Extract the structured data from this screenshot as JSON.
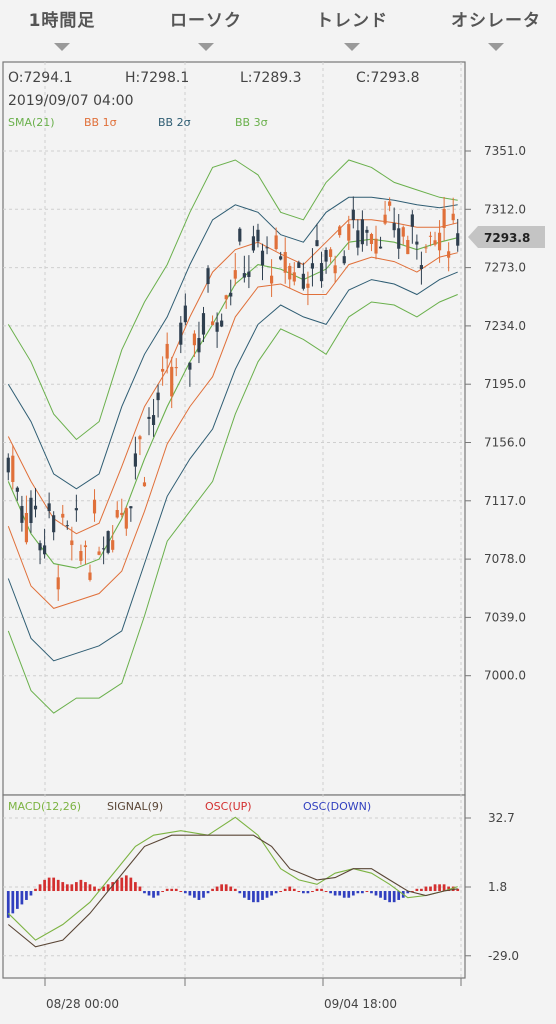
{
  "tabs": [
    {
      "label": "1時間足"
    },
    {
      "label": "ローソク"
    },
    {
      "label": "トレンド"
    },
    {
      "label": "オシレータ"
    }
  ],
  "ohlc": {
    "open": "O:7294.1",
    "high": "H:7298.1",
    "low": "L:7289.3",
    "close": "C:7293.8",
    "datetime": "2019/09/07 04:00"
  },
  "legend_main": [
    {
      "label": "SMA(21)",
      "color": "#6ab04c"
    },
    {
      "label": "BB 1σ",
      "color": "#e0703a"
    },
    {
      "label": "BB 2σ",
      "color": "#2f5d73"
    },
    {
      "label": "BB 3σ",
      "color": "#6ab04c"
    }
  ],
  "legend_sub": [
    {
      "label": "MACD(12,26)",
      "color": "#7cb342"
    },
    {
      "label": "SIGNAL(9)",
      "color": "#5a4636"
    },
    {
      "label": "OSC(UP)",
      "color": "#d32f2f"
    },
    {
      "label": "OSC(DOWN)",
      "color": "#303fbf"
    }
  ],
  "price_tag": "7293.8",
  "x_labels": [
    "08/28 00:00",
    "09/04 18:00"
  ],
  "colors": {
    "up": "#e0703a",
    "down": "#2f3f4f",
    "sma": "#6ab04c",
    "bb1": "#e0703a",
    "bb2": "#2f5d73",
    "bb3": "#6ab04c",
    "macd": "#7cb342",
    "signal": "#5a4636",
    "osc_up": "#d32f2f",
    "osc_down": "#303fbf"
  },
  "chart_data": [
    {
      "type": "candlestick",
      "yticks": [
        "7351.0",
        "7312.0",
        "7273.0",
        "7234.0",
        "7195.0",
        "7156.0",
        "7117.0",
        "7078.0",
        "7039.0",
        "7000.0"
      ],
      "ylim": [
        6962,
        7380
      ],
      "n_candles": 100,
      "sma21": [
        [
          0,
          7130
        ],
        [
          5,
          7095
        ],
        [
          10,
          7075
        ],
        [
          15,
          7072
        ],
        [
          20,
          7078
        ],
        [
          25,
          7105
        ],
        [
          30,
          7145
        ],
        [
          35,
          7180
        ],
        [
          40,
          7210
        ],
        [
          45,
          7235
        ],
        [
          50,
          7262
        ],
        [
          55,
          7275
        ],
        [
          60,
          7272
        ],
        [
          65,
          7265
        ],
        [
          70,
          7272
        ],
        [
          75,
          7290
        ],
        [
          80,
          7292
        ],
        [
          85,
          7290
        ],
        [
          90,
          7285
        ],
        [
          95,
          7290
        ],
        [
          99,
          7293
        ]
      ],
      "bb1": [
        [
          0,
          7160
        ],
        [
          5,
          7130
        ],
        [
          10,
          7105
        ],
        [
          15,
          7095
        ],
        [
          20,
          7102
        ],
        [
          25,
          7140
        ],
        [
          30,
          7180
        ],
        [
          35,
          7205
        ],
        [
          40,
          7240
        ],
        [
          45,
          7270
        ],
        [
          50,
          7285
        ],
        [
          55,
          7290
        ],
        [
          60,
          7282
        ],
        [
          65,
          7275
        ],
        [
          70,
          7290
        ],
        [
          75,
          7305
        ],
        [
          80,
          7305
        ],
        [
          85,
          7303
        ],
        [
          90,
          7300
        ],
        [
          95,
          7300
        ],
        [
          99,
          7303
        ]
      ],
      "bb1_low": [
        [
          0,
          7100
        ],
        [
          5,
          7060
        ],
        [
          10,
          7045
        ],
        [
          15,
          7050
        ],
        [
          20,
          7055
        ],
        [
          25,
          7070
        ],
        [
          30,
          7110
        ],
        [
          35,
          7155
        ],
        [
          40,
          7180
        ],
        [
          45,
          7200
        ],
        [
          50,
          7240
        ],
        [
          55,
          7260
        ],
        [
          60,
          7262
        ],
        [
          65,
          7255
        ],
        [
          70,
          7255
        ],
        [
          75,
          7275
        ],
        [
          80,
          7280
        ],
        [
          85,
          7277
        ],
        [
          90,
          7270
        ],
        [
          95,
          7280
        ],
        [
          99,
          7283
        ]
      ],
      "bb2": [
        [
          0,
          7195
        ],
        [
          5,
          7170
        ],
        [
          10,
          7135
        ],
        [
          15,
          7125
        ],
        [
          20,
          7135
        ],
        [
          25,
          7180
        ],
        [
          30,
          7215
        ],
        [
          35,
          7240
        ],
        [
          40,
          7275
        ],
        [
          45,
          7305
        ],
        [
          50,
          7315
        ],
        [
          55,
          7310
        ],
        [
          60,
          7295
        ],
        [
          65,
          7290
        ],
        [
          70,
          7310
        ],
        [
          75,
          7320
        ],
        [
          80,
          7320
        ],
        [
          85,
          7318
        ],
        [
          90,
          7315
        ],
        [
          95,
          7313
        ],
        [
          99,
          7315
        ]
      ],
      "bb2_low": [
        [
          0,
          7065
        ],
        [
          5,
          7025
        ],
        [
          10,
          7010
        ],
        [
          15,
          7015
        ],
        [
          20,
          7020
        ],
        [
          25,
          7030
        ],
        [
          30,
          7075
        ],
        [
          35,
          7120
        ],
        [
          40,
          7145
        ],
        [
          45,
          7165
        ],
        [
          50,
          7205
        ],
        [
          55,
          7235
        ],
        [
          60,
          7248
        ],
        [
          65,
          7240
        ],
        [
          70,
          7235
        ],
        [
          75,
          7258
        ],
        [
          80,
          7265
        ],
        [
          85,
          7262
        ],
        [
          90,
          7255
        ],
        [
          95,
          7265
        ],
        [
          99,
          7270
        ]
      ],
      "bb3": [
        [
          0,
          7235
        ],
        [
          5,
          7210
        ],
        [
          10,
          7175
        ],
        [
          15,
          7158
        ],
        [
          20,
          7170
        ],
        [
          25,
          7218
        ],
        [
          30,
          7250
        ],
        [
          35,
          7275
        ],
        [
          40,
          7310
        ],
        [
          45,
          7340
        ],
        [
          50,
          7345
        ],
        [
          55,
          7335
        ],
        [
          60,
          7310
        ],
        [
          65,
          7305
        ],
        [
          70,
          7330
        ],
        [
          75,
          7345
        ],
        [
          80,
          7340
        ],
        [
          85,
          7330
        ],
        [
          90,
          7325
        ],
        [
          95,
          7320
        ],
        [
          99,
          7318
        ]
      ],
      "bb3_low": [
        [
          0,
          7030
        ],
        [
          5,
          6990
        ],
        [
          10,
          6975
        ],
        [
          15,
          6985
        ],
        [
          20,
          6985
        ],
        [
          25,
          6995
        ],
        [
          30,
          7040
        ],
        [
          35,
          7090
        ],
        [
          40,
          7110
        ],
        [
          45,
          7130
        ],
        [
          50,
          7175
        ],
        [
          55,
          7210
        ],
        [
          60,
          7232
        ],
        [
          65,
          7225
        ],
        [
          70,
          7215
        ],
        [
          75,
          7240
        ],
        [
          80,
          7250
        ],
        [
          85,
          7248
        ],
        [
          90,
          7240
        ],
        [
          95,
          7250
        ],
        [
          99,
          7255
        ]
      ]
    },
    {
      "type": "macd",
      "yticks": [
        "32.7",
        "1.8",
        "-29.0"
      ],
      "ylim": [
        -36,
        40
      ],
      "macd": [
        [
          0,
          -10
        ],
        [
          6,
          -22
        ],
        [
          12,
          -15
        ],
        [
          18,
          -5
        ],
        [
          22,
          5
        ],
        [
          28,
          20
        ],
        [
          32,
          25
        ],
        [
          38,
          27
        ],
        [
          44,
          25
        ],
        [
          50,
          33
        ],
        [
          55,
          25
        ],
        [
          60,
          10
        ],
        [
          64,
          5
        ],
        [
          68,
          3
        ],
        [
          72,
          8
        ],
        [
          76,
          10
        ],
        [
          80,
          8
        ],
        [
          84,
          3
        ],
        [
          88,
          -3
        ],
        [
          92,
          -2
        ],
        [
          96,
          0
        ],
        [
          99,
          2
        ]
      ],
      "signal": [
        [
          0,
          -15
        ],
        [
          6,
          -25
        ],
        [
          12,
          -22
        ],
        [
          18,
          -10
        ],
        [
          24,
          5
        ],
        [
          30,
          20
        ],
        [
          36,
          25
        ],
        [
          42,
          25
        ],
        [
          48,
          25
        ],
        [
          54,
          25
        ],
        [
          58,
          20
        ],
        [
          62,
          10
        ],
        [
          68,
          5
        ],
        [
          72,
          6
        ],
        [
          76,
          10
        ],
        [
          80,
          10
        ],
        [
          84,
          5
        ],
        [
          88,
          0
        ],
        [
          92,
          -2
        ],
        [
          96,
          0
        ],
        [
          99,
          1
        ]
      ],
      "osc": [
        -12,
        -10,
        -8,
        -6,
        -4,
        -2,
        1,
        3,
        5,
        6,
        6,
        5,
        4,
        3,
        3,
        4,
        5,
        4,
        3,
        2,
        1,
        2,
        3,
        4,
        5,
        6,
        7,
        6,
        4,
        2,
        -1,
        -2,
        -3,
        -2,
        0,
        1,
        1,
        1,
        0,
        -1,
        -2,
        -3,
        -4,
        -3,
        -1,
        1,
        2,
        3,
        3,
        2,
        1,
        -1,
        -3,
        -4,
        -5,
        -5,
        -4,
        -3,
        -2,
        -1,
        0,
        1,
        2,
        1,
        0,
        -1,
        -1,
        0,
        1,
        1,
        0,
        -1,
        -2,
        -2,
        -3,
        -3,
        -2,
        -1,
        -1,
        0,
        -1,
        -2,
        -3,
        -4,
        -5,
        -5,
        -4,
        -3,
        -1,
        0,
        1,
        1,
        2,
        2,
        3,
        3,
        3,
        2,
        2,
        1
      ]
    }
  ]
}
